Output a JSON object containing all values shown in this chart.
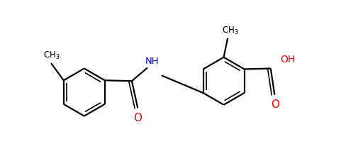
{
  "background_color": "#ffffff",
  "bond_color": "#000000",
  "nh_color": "#0000cd",
  "o_color": "#ff0000",
  "ch3_color": "#000000",
  "lw": 1.6,
  "lw_inner": 1.2,
  "r": 0.72,
  "figsize": [
    5.12,
    2.34
  ],
  "dpi": 100,
  "xlim": [
    0,
    10
  ],
  "ylim": [
    -2.5,
    2.5
  ]
}
